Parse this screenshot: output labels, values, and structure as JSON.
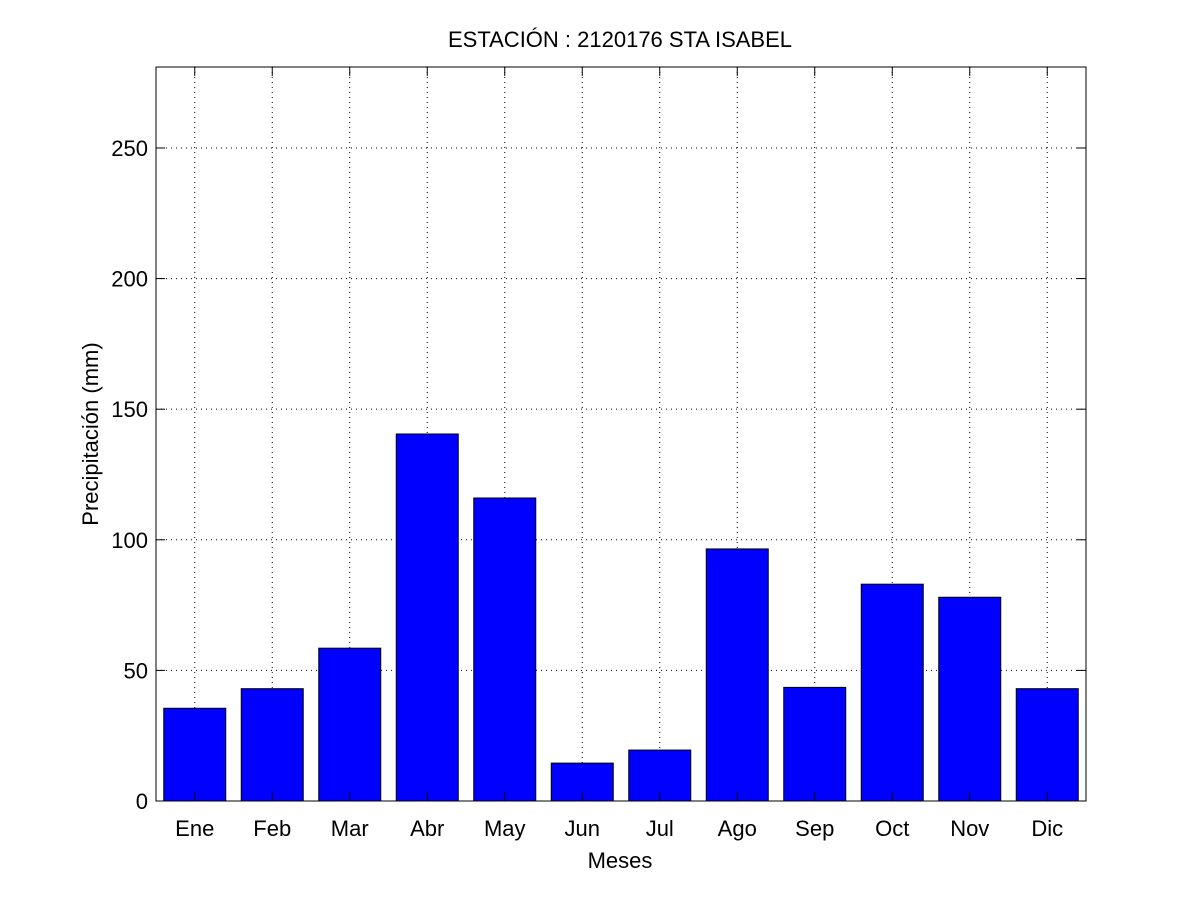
{
  "chart_data": {
    "type": "bar",
    "title": "ESTACIÓN :  2120176  STA ISABEL",
    "xlabel": "Meses",
    "ylabel": "Precipitación (mm)",
    "categories": [
      "Ene",
      "Feb",
      "Mar",
      "Abr",
      "May",
      "Jun",
      "Jul",
      "Ago",
      "Sep",
      "Oct",
      "Nov",
      "Dic"
    ],
    "values": [
      35.5,
      43,
      58.5,
      140.5,
      116,
      14.5,
      19.5,
      96.5,
      43.5,
      83,
      78,
      43
    ],
    "ylim": [
      0,
      281
    ],
    "yticks": [
      0,
      50,
      100,
      150,
      200,
      250
    ],
    "grid": true,
    "bar_color": "#0000ff",
    "edge_color": "#000000"
  }
}
